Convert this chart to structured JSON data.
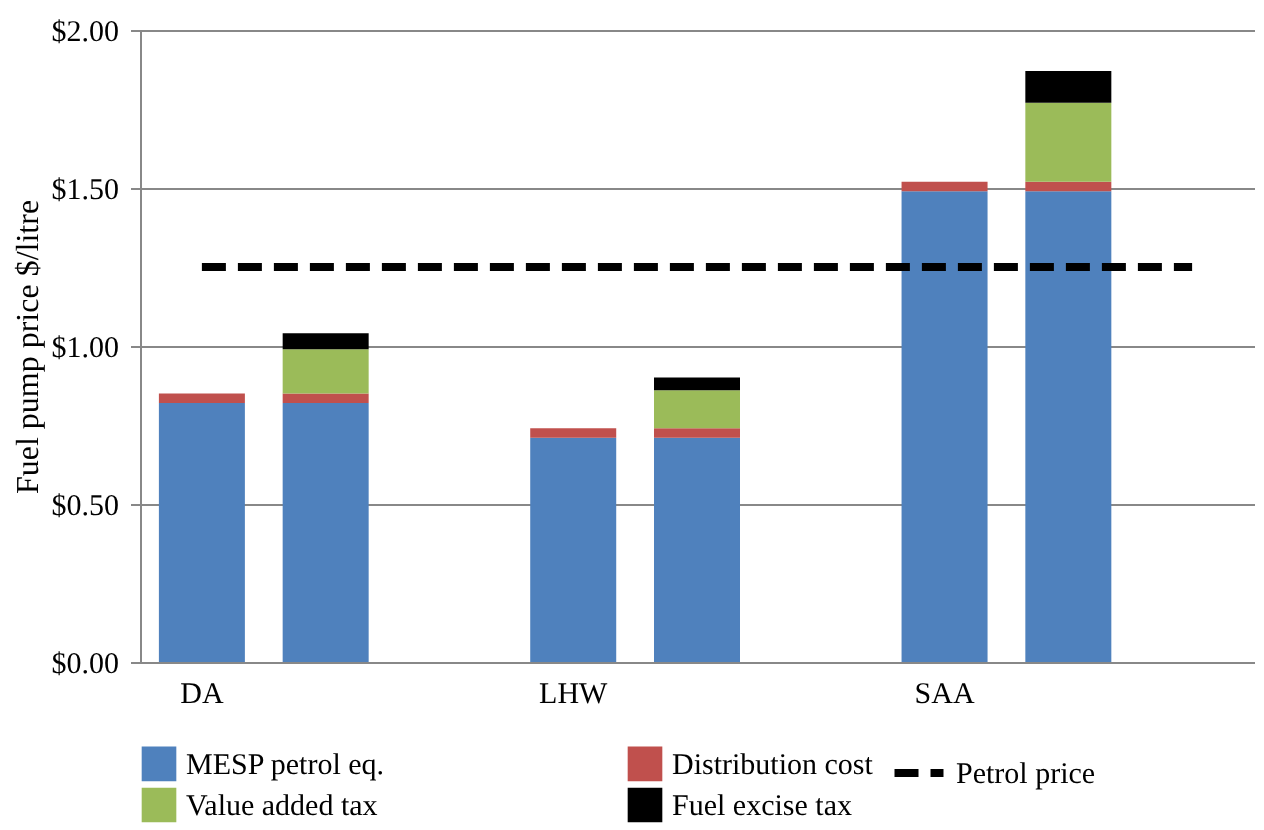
{
  "chart_data": {
    "type": "bar",
    "stacked": true,
    "ylabel": "Fuel pump price $/litre",
    "categories": [
      "DA",
      null,
      null,
      "LHW",
      null,
      null,
      "SAA",
      null,
      null
    ],
    "series": [
      {
        "name": "MESP petrol eq.",
        "color": "#4f81bd",
        "values": [
          0.82,
          0.82,
          null,
          0.71,
          0.71,
          null,
          1.49,
          1.49,
          null
        ]
      },
      {
        "name": "Distribution cost",
        "color": "#c0504d",
        "values": [
          0.03,
          0.03,
          null,
          0.03,
          0.03,
          null,
          0.03,
          0.03,
          null
        ]
      },
      {
        "name": "Value added tax",
        "color": "#9bbb59",
        "values": [
          null,
          0.14,
          null,
          null,
          0.12,
          null,
          null,
          0.25,
          null
        ]
      },
      {
        "name": "Fuel excise tax",
        "color": "#000000",
        "values": [
          null,
          0.05,
          null,
          null,
          0.04,
          null,
          null,
          0.1,
          null
        ]
      },
      {
        "name": "Petrol price",
        "type": "line",
        "line_style": "dashed",
        "color": "#000000",
        "values": [
          1.25,
          1.25,
          1.25,
          1.25,
          1.25,
          1.25,
          1.25,
          1.25,
          1.25
        ]
      }
    ],
    "ylim": [
      0,
      2
    ],
    "yticks": [
      {
        "value": 0,
        "label": "$0.00"
      },
      {
        "value": 0.5,
        "label": "$0.50"
      },
      {
        "value": 1,
        "label": "$1.00"
      },
      {
        "value": 1.5,
        "label": "$1.50"
      },
      {
        "value": 2,
        "label": "$2.00"
      }
    ],
    "grid": "y",
    "legend": "bottom"
  }
}
